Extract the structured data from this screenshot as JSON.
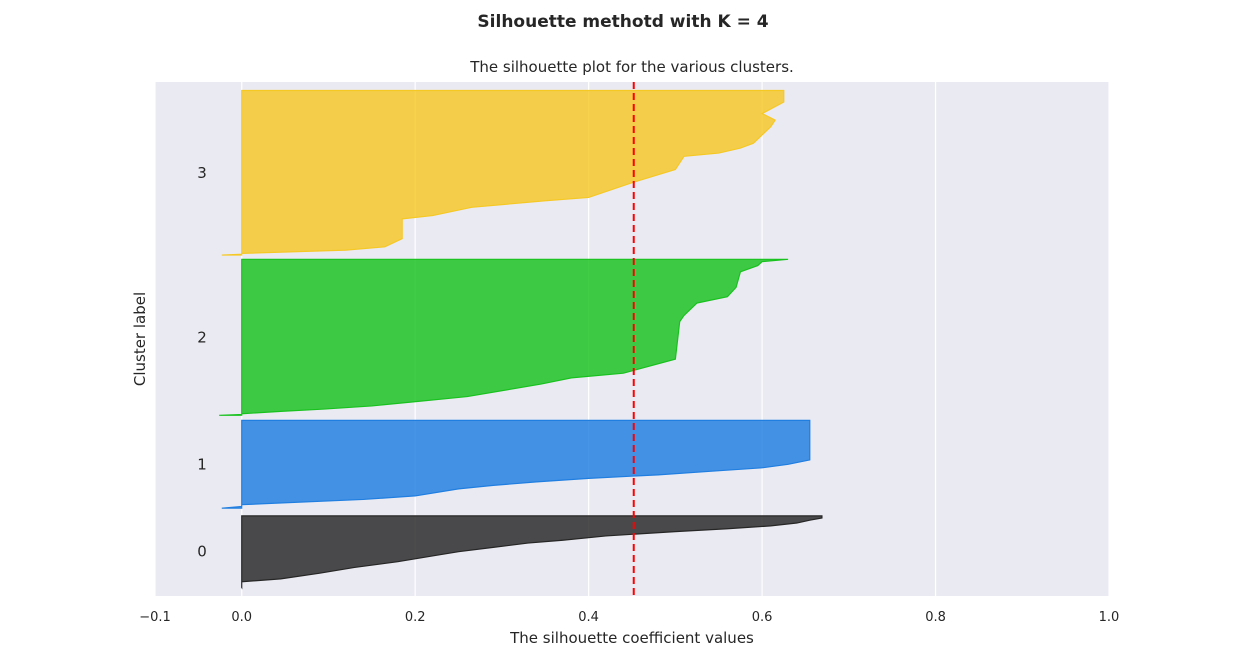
{
  "figure": {
    "suptitle": "Silhouette  methotd with K = 4"
  },
  "chart_data": {
    "type": "area",
    "title": "The silhouette plot for the various clusters.",
    "xlabel": "The silhouette coefficient values",
    "ylabel": "Cluster label",
    "xlim": [
      -0.1,
      1.0
    ],
    "xticks": [
      -0.1,
      0.0,
      0.2,
      0.4,
      0.6,
      0.8,
      1.0
    ],
    "xtick_labels": [
      "−0.1",
      "0.0",
      "0.2",
      "0.4",
      "0.6",
      "0.8",
      "1.0"
    ],
    "grid": true,
    "background_color": "#eaeaf2",
    "grid_color": "#ffffff",
    "average_silhouette": 0.452,
    "average_line_color": "#ff0000",
    "clusters": [
      {
        "label": "0",
        "color": "#262626",
        "y_range": [
          10,
          94
        ],
        "profile": [
          [
            0.0,
            0
          ],
          [
            0.0,
            0.08
          ],
          [
            0.045,
            0.12
          ],
          [
            0.09,
            0.2
          ],
          [
            0.13,
            0.28
          ],
          [
            0.18,
            0.36
          ],
          [
            0.22,
            0.44
          ],
          [
            0.25,
            0.5
          ],
          [
            0.29,
            0.56
          ],
          [
            0.33,
            0.62
          ],
          [
            0.37,
            0.66
          ],
          [
            0.42,
            0.72
          ],
          [
            0.5,
            0.78
          ],
          [
            0.56,
            0.82
          ],
          [
            0.61,
            0.86
          ],
          [
            0.64,
            0.9
          ],
          [
            0.655,
            0.94
          ],
          [
            0.669,
            0.97
          ],
          [
            0.669,
            1
          ]
        ]
      },
      {
        "label": "1",
        "color": "#1f7ee0",
        "y_range": [
          103,
          206
        ],
        "profile": [
          [
            -0.023,
            0
          ],
          [
            0.0,
            0.02
          ],
          [
            0.0,
            0.04
          ],
          [
            0.14,
            0.1
          ],
          [
            0.2,
            0.14
          ],
          [
            0.25,
            0.22
          ],
          [
            0.29,
            0.26
          ],
          [
            0.34,
            0.3
          ],
          [
            0.4,
            0.34
          ],
          [
            0.48,
            0.38
          ],
          [
            0.54,
            0.42
          ],
          [
            0.6,
            0.46
          ],
          [
            0.63,
            0.5
          ],
          [
            0.655,
            0.55
          ],
          [
            0.655,
            1
          ]
        ]
      },
      {
        "label": "2",
        "color": "#18c21e",
        "y_range": [
          212,
          395
        ],
        "profile": [
          [
            -0.026,
            0
          ],
          [
            0.0,
            0.005
          ],
          [
            0.0,
            0.01
          ],
          [
            0.045,
            0.025
          ],
          [
            0.095,
            0.04
          ],
          [
            0.15,
            0.06
          ],
          [
            0.205,
            0.09
          ],
          [
            0.26,
            0.12
          ],
          [
            0.345,
            0.2
          ],
          [
            0.38,
            0.24
          ],
          [
            0.44,
            0.27
          ],
          [
            0.5,
            0.36
          ],
          [
            0.505,
            0.6
          ],
          [
            0.51,
            0.64
          ],
          [
            0.525,
            0.72
          ],
          [
            0.56,
            0.76
          ],
          [
            0.57,
            0.82
          ],
          [
            0.575,
            0.92
          ],
          [
            0.595,
            0.96
          ],
          [
            0.6,
            0.985
          ],
          [
            0.63,
            1
          ]
        ]
      },
      {
        "label": "3",
        "color": "#f6c824",
        "y_range": [
          400,
          593
        ],
        "profile": [
          [
            -0.023,
            0
          ],
          [
            0.0,
            0.005
          ],
          [
            0.0,
            0.01
          ],
          [
            0.12,
            0.03
          ],
          [
            0.165,
            0.05
          ],
          [
            0.185,
            0.1
          ],
          [
            0.185,
            0.22
          ],
          [
            0.22,
            0.24
          ],
          [
            0.265,
            0.29
          ],
          [
            0.35,
            0.33
          ],
          [
            0.4,
            0.35
          ],
          [
            0.45,
            0.44
          ],
          [
            0.5,
            0.52
          ],
          [
            0.51,
            0.6
          ],
          [
            0.55,
            0.62
          ],
          [
            0.575,
            0.65
          ],
          [
            0.59,
            0.68
          ],
          [
            0.6,
            0.73
          ],
          [
            0.61,
            0.78
          ],
          [
            0.615,
            0.82
          ],
          [
            0.6,
            0.86
          ],
          [
            0.625,
            0.93
          ],
          [
            0.625,
            1
          ]
        ]
      }
    ]
  }
}
